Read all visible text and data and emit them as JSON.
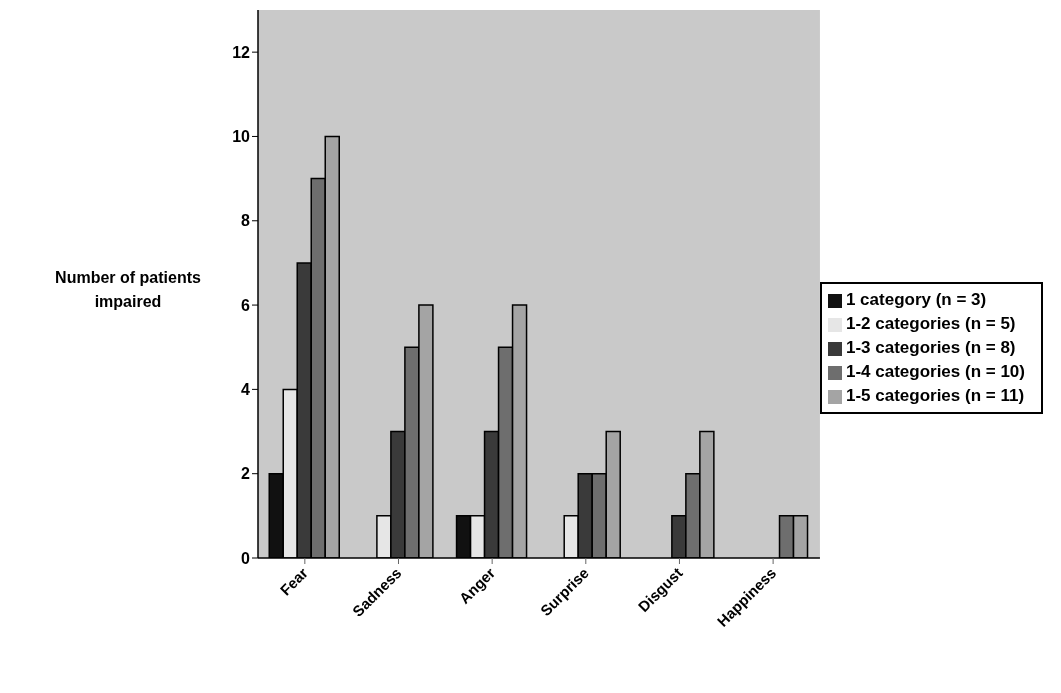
{
  "chart_data": {
    "type": "bar",
    "ylabel": "Number of patients impaired",
    "categories": [
      "Fear",
      "Sadness",
      "Anger",
      "Surprise",
      "Disgust",
      "Happiness"
    ],
    "series": [
      {
        "name": "1 category (n = 3)",
        "color": "#111111",
        "values": [
          2,
          0,
          1,
          0,
          0,
          0
        ]
      },
      {
        "name": "1-2 categories (n = 5)",
        "color": "#e6e6e6",
        "values": [
          4,
          1,
          1,
          1,
          0,
          0
        ]
      },
      {
        "name": "1-3 categories (n = 8)",
        "color": "#3a3a3a",
        "values": [
          7,
          3,
          3,
          2,
          1,
          0
        ]
      },
      {
        "name": "1-4 categories (n = 10)",
        "color": "#6e6e6e",
        "values": [
          9,
          5,
          5,
          2,
          2,
          1
        ]
      },
      {
        "name": "1-5 categories (n = 11)",
        "color": "#a4a4a4",
        "values": [
          10,
          6,
          6,
          3,
          3,
          1
        ]
      }
    ],
    "ylim": [
      0,
      13
    ],
    "yticks": [
      0,
      2,
      4,
      6,
      8,
      10,
      12
    ],
    "grid": false,
    "legend": "right"
  }
}
